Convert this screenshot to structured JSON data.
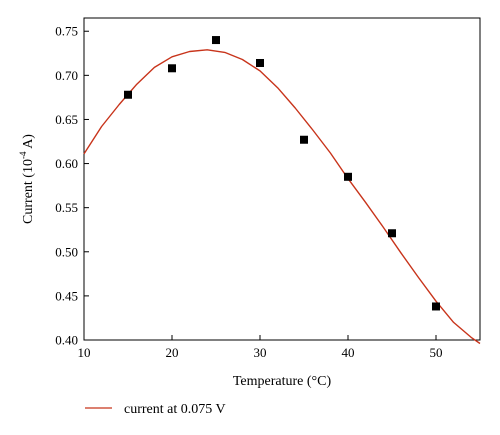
{
  "chart_data": {
    "type": "scatter",
    "xlabel": "Temperature (°C)",
    "ylabel_parts": {
      "pre": "Current (10",
      "sup": "-4",
      "post": " A)"
    },
    "xlim": [
      10,
      55
    ],
    "ylim": [
      0.4,
      0.765
    ],
    "x_ticks": [
      10,
      20,
      30,
      40,
      50
    ],
    "y_ticks": [
      0.4,
      0.45,
      0.5,
      0.55,
      0.6,
      0.65,
      0.7,
      0.75
    ],
    "x_tick_labels": [
      "10",
      "20",
      "30",
      "40",
      "50"
    ],
    "y_tick_labels": [
      "0.40",
      "0.45",
      "0.50",
      "0.55",
      "0.60",
      "0.65",
      "0.70",
      "0.75"
    ],
    "points": {
      "x": [
        15,
        20,
        25,
        30,
        35,
        40,
        45,
        50
      ],
      "y": [
        0.678,
        0.708,
        0.74,
        0.714,
        0.627,
        0.585,
        0.521,
        0.438
      ]
    },
    "fit": {
      "name": "current at 0.075 V",
      "color": "#c8341b",
      "x": [
        10,
        12,
        14,
        16,
        18,
        20,
        22,
        24,
        26,
        28,
        30,
        32,
        34,
        36,
        38,
        40,
        42,
        44,
        46,
        48,
        50,
        52,
        54,
        55
      ],
      "y": [
        0.611,
        0.642,
        0.667,
        0.69,
        0.709,
        0.721,
        0.727,
        0.729,
        0.726,
        0.718,
        0.705,
        0.686,
        0.663,
        0.638,
        0.612,
        0.583,
        0.556,
        0.528,
        0.499,
        0.471,
        0.444,
        0.42,
        0.403,
        0.396
      ]
    },
    "marker_color": "#000000",
    "legend_placement": "bottom-left",
    "grid": false
  }
}
